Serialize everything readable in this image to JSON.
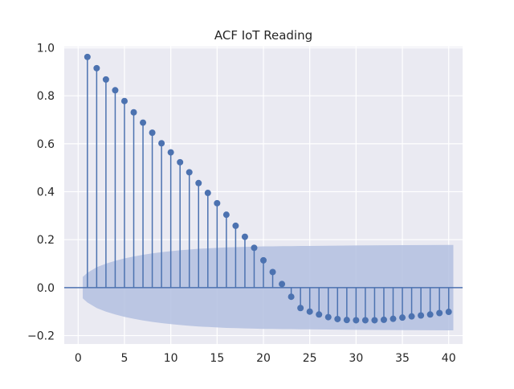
{
  "chart_data": {
    "type": "stem",
    "title": "ACF IoT Reading",
    "xlabel": "",
    "ylabel": "",
    "xlim": [
      -1.5,
      41.5
    ],
    "ylim": [
      -0.235,
      1.005
    ],
    "x_ticks": [
      0,
      5,
      10,
      15,
      20,
      25,
      30,
      35,
      40
    ],
    "y_ticks": [
      -0.2,
      0.0,
      0.2,
      0.4,
      0.6,
      0.8,
      1.0
    ],
    "x_tick_labels": [
      "0",
      "5",
      "10",
      "15",
      "20",
      "25",
      "30",
      "35",
      "40"
    ],
    "y_tick_labels": [
      "−0.2",
      "0.0",
      "0.2",
      "0.4",
      "0.6",
      "0.8",
      "1.0"
    ],
    "grid": true,
    "lags": [
      1,
      2,
      3,
      4,
      5,
      6,
      7,
      8,
      9,
      10,
      11,
      12,
      13,
      14,
      15,
      16,
      17,
      18,
      19,
      20,
      21,
      22,
      23,
      24,
      25,
      26,
      27,
      28,
      29,
      30,
      31,
      32,
      33,
      34,
      35,
      36,
      37,
      38,
      39,
      40
    ],
    "values": [
      0.962,
      0.915,
      0.868,
      0.823,
      0.778,
      0.731,
      0.688,
      0.646,
      0.602,
      0.564,
      0.523,
      0.481,
      0.436,
      0.395,
      0.352,
      0.304,
      0.258,
      0.212,
      0.166,
      0.114,
      0.065,
      0.015,
      -0.038,
      -0.085,
      -0.1,
      -0.112,
      -0.123,
      -0.131,
      -0.135,
      -0.136,
      -0.136,
      -0.136,
      -0.134,
      -0.13,
      -0.125,
      -0.12,
      -0.116,
      -0.112,
      -0.106,
      -0.101
    ],
    "confidence_band": {
      "x": [
        0.5,
        1,
        2,
        3,
        4,
        5,
        6,
        7,
        8,
        9,
        10,
        11,
        12,
        13,
        14,
        15,
        16,
        17,
        18,
        19,
        20,
        21,
        22,
        23,
        24,
        25,
        30,
        35,
        40,
        40.5
      ],
      "upper": [
        0.045,
        0.062,
        0.085,
        0.1,
        0.112,
        0.122,
        0.13,
        0.137,
        0.143,
        0.148,
        0.152,
        0.156,
        0.159,
        0.162,
        0.164,
        0.166,
        0.168,
        0.169,
        0.17,
        0.171,
        0.172,
        0.172,
        0.173,
        0.173,
        0.174,
        0.174,
        0.176,
        0.177,
        0.178,
        0.178
      ]
    },
    "colors": {
      "stem": "#4c72b0",
      "band": "#b3bfe0",
      "background": "#eaeaf2",
      "grid": "#ffffff",
      "zero_line": "#4c72b0"
    }
  }
}
